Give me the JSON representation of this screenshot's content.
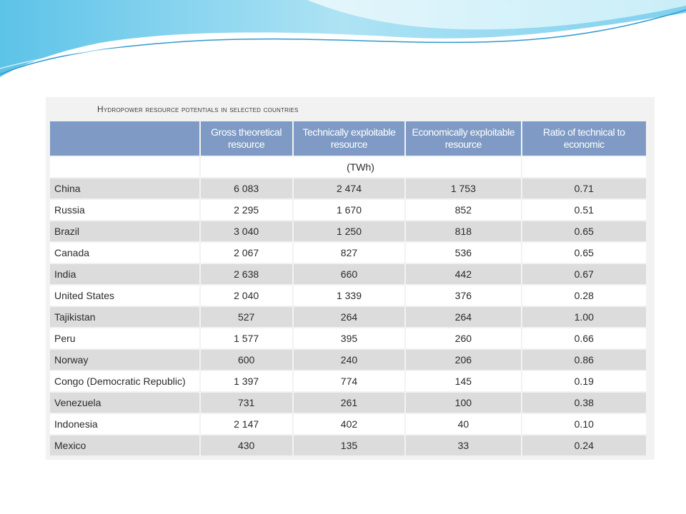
{
  "slide": {
    "table_title": "Hydropower resource potentials in selected countries",
    "columns": [
      "",
      "Gross theoretical resource",
      "Technically exploitable resource",
      "Economically exploitable resource",
      "Ratio of technical to economic"
    ],
    "unit": "(TWh)",
    "rows": [
      {
        "country": "China",
        "gross": "6 083",
        "technical": "2 474",
        "economic": "1 753",
        "ratio": "0.71"
      },
      {
        "country": "Russia",
        "gross": "2 295",
        "technical": "1 670",
        "economic": "852",
        "ratio": "0.51"
      },
      {
        "country": "Brazil",
        "gross": "3 040",
        "technical": "1 250",
        "economic": "818",
        "ratio": "0.65"
      },
      {
        "country": "Canada",
        "gross": "2 067",
        "technical": "827",
        "economic": "536",
        "ratio": "0.65"
      },
      {
        "country": "India",
        "gross": "2 638",
        "technical": "660",
        "economic": "442",
        "ratio": "0.67"
      },
      {
        "country": "United States",
        "gross": "2 040",
        "technical": "1 339",
        "economic": "376",
        "ratio": "0.28"
      },
      {
        "country": "Tajikistan",
        "gross": "527",
        "technical": "264",
        "economic": "264",
        "ratio": "1.00"
      },
      {
        "country": "Peru",
        "gross": "1 577",
        "technical": "395",
        "economic": "260",
        "ratio": "0.66"
      },
      {
        "country": "Norway",
        "gross": "600",
        "technical": "240",
        "economic": "206",
        "ratio": "0.86"
      },
      {
        "country": "Congo (Democratic Republic)",
        "gross": "1 397",
        "technical": "774",
        "economic": "145",
        "ratio": "0.19"
      },
      {
        "country": "Venezuela",
        "gross": "731",
        "technical": "261",
        "economic": "100",
        "ratio": "0.38"
      },
      {
        "country": "Indonesia",
        "gross": "2 147",
        "technical": "402",
        "economic": "40",
        "ratio": "0.10"
      },
      {
        "country": "Mexico",
        "gross": "430",
        "technical": "135",
        "economic": "33",
        "ratio": "0.24"
      }
    ]
  },
  "colors": {
    "header_bg": "#7f9bc5",
    "row_shade": "#dcdcdc",
    "wave_light": "#bfe9f5",
    "wave_dark": "#3aa7d8"
  }
}
